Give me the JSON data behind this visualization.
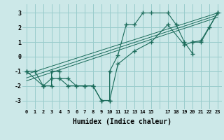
{
  "background_color": "#cce8e8",
  "grid_color": "#99cccc",
  "line_color": "#1a6b5a",
  "marker": "+",
  "marker_size": 4,
  "marker_lw": 1.0,
  "xlim": [
    -0.5,
    23.5
  ],
  "ylim": [
    -3.6,
    3.6
  ],
  "xlabel": "Humidex (Indice chaleur)",
  "xlabel_fontsize": 7,
  "xtick_fontsize": 5,
  "ytick_fontsize": 6,
  "ytick_values": [
    -3,
    -2,
    -1,
    0,
    1,
    2,
    3
  ],
  "series1_x": [
    0,
    1,
    2,
    3,
    3,
    4,
    4,
    5,
    6,
    7,
    8,
    9,
    10,
    10,
    11,
    12,
    13,
    14,
    15,
    17,
    18,
    19,
    20,
    20,
    21,
    22,
    23
  ],
  "series1_y": [
    -1,
    -1,
    -2,
    -2,
    -1,
    -1,
    -1.5,
    -1.5,
    -2,
    -2,
    -2,
    -3,
    -3,
    -1,
    0.1,
    2.2,
    2.2,
    3,
    3,
    3,
    2.2,
    1,
    0.2,
    1,
    1,
    2,
    3
  ],
  "series2_x": [
    0,
    2,
    3,
    4,
    5,
    7,
    8,
    9,
    10,
    11,
    13,
    15,
    17,
    19,
    20,
    21,
    23
  ],
  "series2_y": [
    -1,
    -2,
    -1.5,
    -1.5,
    -2,
    -2,
    -2,
    -3,
    -3,
    -0.5,
    0.4,
    1.0,
    2.2,
    0.8,
    1.0,
    1.1,
    3
  ],
  "series3_x": [
    0,
    23
  ],
  "series3_y": [
    -1.2,
    3.0
  ],
  "series4_x": [
    0,
    23
  ],
  "series4_y": [
    -1.45,
    2.85
  ],
  "series5_x": [
    0,
    23
  ],
  "series5_y": [
    -1.65,
    2.7
  ]
}
